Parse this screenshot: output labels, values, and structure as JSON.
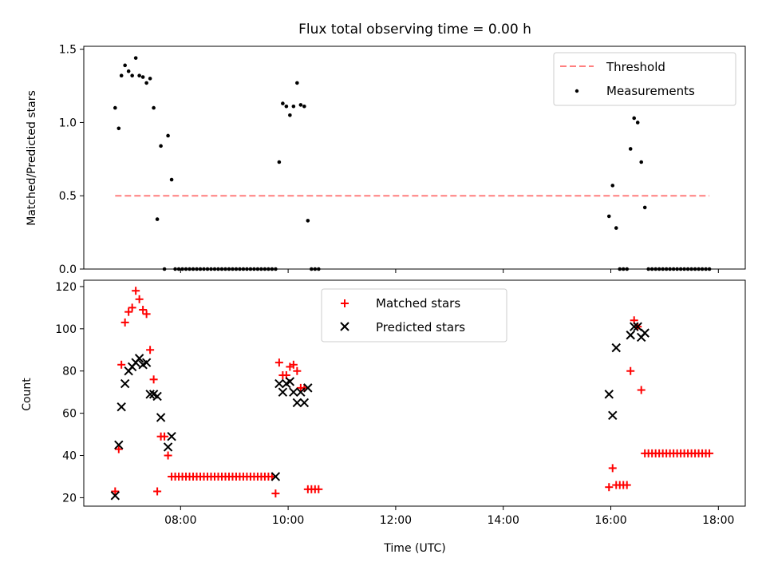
{
  "chart_data": [
    {
      "type": "scatter",
      "title": "Flux total observing time = 0.00 h",
      "ylabel": "Matched/Predicted stars",
      "xlabel": "",
      "xlim": [
        "06:12",
        "18:30"
      ],
      "ylim": [
        0,
        1.52
      ],
      "yticks": [
        0.0,
        0.5,
        1.0,
        1.5
      ],
      "ytick_labels": [
        "0.0",
        "0.5",
        "1.0",
        "1.5"
      ],
      "legend": {
        "position": "top-right",
        "entries": [
          "Threshold",
          "Measurements"
        ]
      },
      "threshold": {
        "name": "Threshold",
        "y": 0.5,
        "x": [
          "06:47",
          "17:50"
        ],
        "color": "#ff7f7f"
      },
      "series": [
        {
          "name": "Measurements",
          "color": "#000000",
          "points": [
            [
              "06:47",
              1.1
            ],
            [
              "06:51",
              0.96
            ],
            [
              "06:54",
              1.32
            ],
            [
              "06:58",
              1.39
            ],
            [
              "07:02",
              1.35
            ],
            [
              "07:06",
              1.32
            ],
            [
              "07:10",
              1.44
            ],
            [
              "07:14",
              1.32
            ],
            [
              "07:18",
              1.31
            ],
            [
              "07:22",
              1.27
            ],
            [
              "07:26",
              1.3
            ],
            [
              "07:30",
              1.1
            ],
            [
              "07:34",
              0.34
            ],
            [
              "07:38",
              0.84
            ],
            [
              "07:42",
              0.0
            ],
            [
              "07:46",
              0.91
            ],
            [
              "07:50",
              0.61
            ],
            [
              "07:54",
              0.0
            ],
            [
              "07:58",
              0.0
            ],
            [
              "08:02",
              0.0
            ],
            [
              "08:06",
              0.0
            ],
            [
              "08:10",
              0.0
            ],
            [
              "08:14",
              0.0
            ],
            [
              "08:18",
              0.0
            ],
            [
              "08:22",
              0.0
            ],
            [
              "08:26",
              0.0
            ],
            [
              "08:30",
              0.0
            ],
            [
              "08:34",
              0.0
            ],
            [
              "08:38",
              0.0
            ],
            [
              "08:42",
              0.0
            ],
            [
              "08:46",
              0.0
            ],
            [
              "08:50",
              0.0
            ],
            [
              "08:54",
              0.0
            ],
            [
              "08:58",
              0.0
            ],
            [
              "09:02",
              0.0
            ],
            [
              "09:06",
              0.0
            ],
            [
              "09:10",
              0.0
            ],
            [
              "09:14",
              0.0
            ],
            [
              "09:18",
              0.0
            ],
            [
              "09:22",
              0.0
            ],
            [
              "09:26",
              0.0
            ],
            [
              "09:30",
              0.0
            ],
            [
              "09:34",
              0.0
            ],
            [
              "09:38",
              0.0
            ],
            [
              "09:42",
              0.0
            ],
            [
              "09:46",
              0.0
            ],
            [
              "09:50",
              0.73
            ],
            [
              "09:54",
              1.13
            ],
            [
              "09:58",
              1.11
            ],
            [
              "10:02",
              1.05
            ],
            [
              "10:06",
              1.11
            ],
            [
              "10:10",
              1.27
            ],
            [
              "10:14",
              1.12
            ],
            [
              "10:18",
              1.11
            ],
            [
              "10:22",
              0.33
            ],
            [
              "10:26",
              0.0
            ],
            [
              "10:30",
              0.0
            ],
            [
              "10:34",
              0.0
            ],
            [
              "15:58",
              0.36
            ],
            [
              "16:02",
              0.57
            ],
            [
              "16:06",
              0.28
            ],
            [
              "16:10",
              0.0
            ],
            [
              "16:14",
              0.0
            ],
            [
              "16:18",
              0.0
            ],
            [
              "16:22",
              0.82
            ],
            [
              "16:26",
              1.03
            ],
            [
              "16:30",
              1.0
            ],
            [
              "16:34",
              0.73
            ],
            [
              "16:38",
              0.42
            ],
            [
              "16:42",
              0.0
            ],
            [
              "16:46",
              0.0
            ],
            [
              "16:50",
              0.0
            ],
            [
              "16:54",
              0.0
            ],
            [
              "16:58",
              0.0
            ],
            [
              "17:02",
              0.0
            ],
            [
              "17:06",
              0.0
            ],
            [
              "17:10",
              0.0
            ],
            [
              "17:14",
              0.0
            ],
            [
              "17:18",
              0.0
            ],
            [
              "17:22",
              0.0
            ],
            [
              "17:26",
              0.0
            ],
            [
              "17:30",
              0.0
            ],
            [
              "17:34",
              0.0
            ],
            [
              "17:38",
              0.0
            ],
            [
              "17:42",
              0.0
            ],
            [
              "17:46",
              0.0
            ],
            [
              "17:50",
              0.0
            ]
          ]
        }
      ]
    },
    {
      "type": "scatter",
      "title": "",
      "ylabel": "Count",
      "xlabel": "Time (UTC)",
      "xlim": [
        "06:12",
        "18:30"
      ],
      "ylim": [
        16,
        123
      ],
      "yticks": [
        20,
        40,
        60,
        80,
        100,
        120
      ],
      "ytick_labels": [
        "20",
        "40",
        "60",
        "80",
        "100",
        "120"
      ],
      "xticks": [
        "08:00",
        "10:00",
        "12:00",
        "14:00",
        "16:00",
        "18:00"
      ],
      "legend": {
        "position": "top-center",
        "entries": [
          "Matched stars",
          "Predicted stars"
        ]
      },
      "series": [
        {
          "name": "Matched stars",
          "marker": "+",
          "color": "#ff0000",
          "points": [
            [
              "06:47",
              23
            ],
            [
              "06:51",
              43
            ],
            [
              "06:54",
              83
            ],
            [
              "06:58",
              103
            ],
            [
              "07:02",
              108
            ],
            [
              "07:06",
              110
            ],
            [
              "07:10",
              118
            ],
            [
              "07:14",
              114
            ],
            [
              "07:18",
              109
            ],
            [
              "07:22",
              107
            ],
            [
              "07:26",
              90
            ],
            [
              "07:30",
              76
            ],
            [
              "07:34",
              23
            ],
            [
              "07:38",
              49
            ],
            [
              "07:42",
              49
            ],
            [
              "07:46",
              40
            ],
            [
              "07:50",
              30
            ],
            [
              "07:54",
              30
            ],
            [
              "07:58",
              30
            ],
            [
              "08:02",
              30
            ],
            [
              "08:06",
              30
            ],
            [
              "08:10",
              30
            ],
            [
              "08:14",
              30
            ],
            [
              "08:18",
              30
            ],
            [
              "08:22",
              30
            ],
            [
              "08:26",
              30
            ],
            [
              "08:30",
              30
            ],
            [
              "08:34",
              30
            ],
            [
              "08:38",
              30
            ],
            [
              "08:42",
              30
            ],
            [
              "08:46",
              30
            ],
            [
              "08:50",
              30
            ],
            [
              "08:54",
              30
            ],
            [
              "08:58",
              30
            ],
            [
              "09:02",
              30
            ],
            [
              "09:06",
              30
            ],
            [
              "09:10",
              30
            ],
            [
              "09:14",
              30
            ],
            [
              "09:18",
              30
            ],
            [
              "09:22",
              30
            ],
            [
              "09:26",
              30
            ],
            [
              "09:30",
              30
            ],
            [
              "09:34",
              30
            ],
            [
              "09:38",
              30
            ],
            [
              "09:42",
              30
            ],
            [
              "09:46",
              22
            ],
            [
              "09:50",
              84
            ],
            [
              "09:54",
              78
            ],
            [
              "09:58",
              78
            ],
            [
              "10:02",
              82
            ],
            [
              "10:06",
              83
            ],
            [
              "10:10",
              80
            ],
            [
              "10:14",
              72
            ],
            [
              "10:18",
              72
            ],
            [
              "10:22",
              24
            ],
            [
              "10:26",
              24
            ],
            [
              "10:30",
              24
            ],
            [
              "10:34",
              24
            ],
            [
              "15:58",
              25
            ],
            [
              "16:02",
              34
            ],
            [
              "16:06",
              26
            ],
            [
              "16:10",
              26
            ],
            [
              "16:14",
              26
            ],
            [
              "16:18",
              26
            ],
            [
              "16:22",
              80
            ],
            [
              "16:26",
              104
            ],
            [
              "16:30",
              101
            ],
            [
              "16:34",
              71
            ],
            [
              "16:38",
              41
            ],
            [
              "16:42",
              41
            ],
            [
              "16:46",
              41
            ],
            [
              "16:50",
              41
            ],
            [
              "16:54",
              41
            ],
            [
              "16:58",
              41
            ],
            [
              "17:02",
              41
            ],
            [
              "17:06",
              41
            ],
            [
              "17:10",
              41
            ],
            [
              "17:14",
              41
            ],
            [
              "17:18",
              41
            ],
            [
              "17:22",
              41
            ],
            [
              "17:26",
              41
            ],
            [
              "17:30",
              41
            ],
            [
              "17:34",
              41
            ],
            [
              "17:38",
              41
            ],
            [
              "17:42",
              41
            ],
            [
              "17:46",
              41
            ],
            [
              "17:50",
              41
            ]
          ]
        },
        {
          "name": "Predicted stars",
          "marker": "x",
          "color": "#000000",
          "points": [
            [
              "06:47",
              21
            ],
            [
              "06:51",
              45
            ],
            [
              "06:54",
              63
            ],
            [
              "06:58",
              74
            ],
            [
              "07:02",
              80
            ],
            [
              "07:06",
              82
            ],
            [
              "07:10",
              84
            ],
            [
              "07:14",
              86
            ],
            [
              "07:18",
              83
            ],
            [
              "07:22",
              84
            ],
            [
              "07:26",
              69
            ],
            [
              "07:30",
              69
            ],
            [
              "07:34",
              68
            ],
            [
              "07:38",
              58
            ],
            [
              "07:46",
              44
            ],
            [
              "07:50",
              49
            ],
            [
              "09:46",
              30
            ],
            [
              "09:50",
              74
            ],
            [
              "09:54",
              70
            ],
            [
              "09:58",
              74
            ],
            [
              "10:02",
              75
            ],
            [
              "10:06",
              70
            ],
            [
              "10:10",
              65
            ],
            [
              "10:14",
              70
            ],
            [
              "10:18",
              65
            ],
            [
              "10:22",
              72
            ],
            [
              "15:58",
              69
            ],
            [
              "16:02",
              59
            ],
            [
              "16:06",
              91
            ],
            [
              "16:22",
              97
            ],
            [
              "16:26",
              101
            ],
            [
              "16:30",
              101
            ],
            [
              "16:34",
              96
            ],
            [
              "16:38",
              98
            ]
          ]
        }
      ]
    }
  ]
}
